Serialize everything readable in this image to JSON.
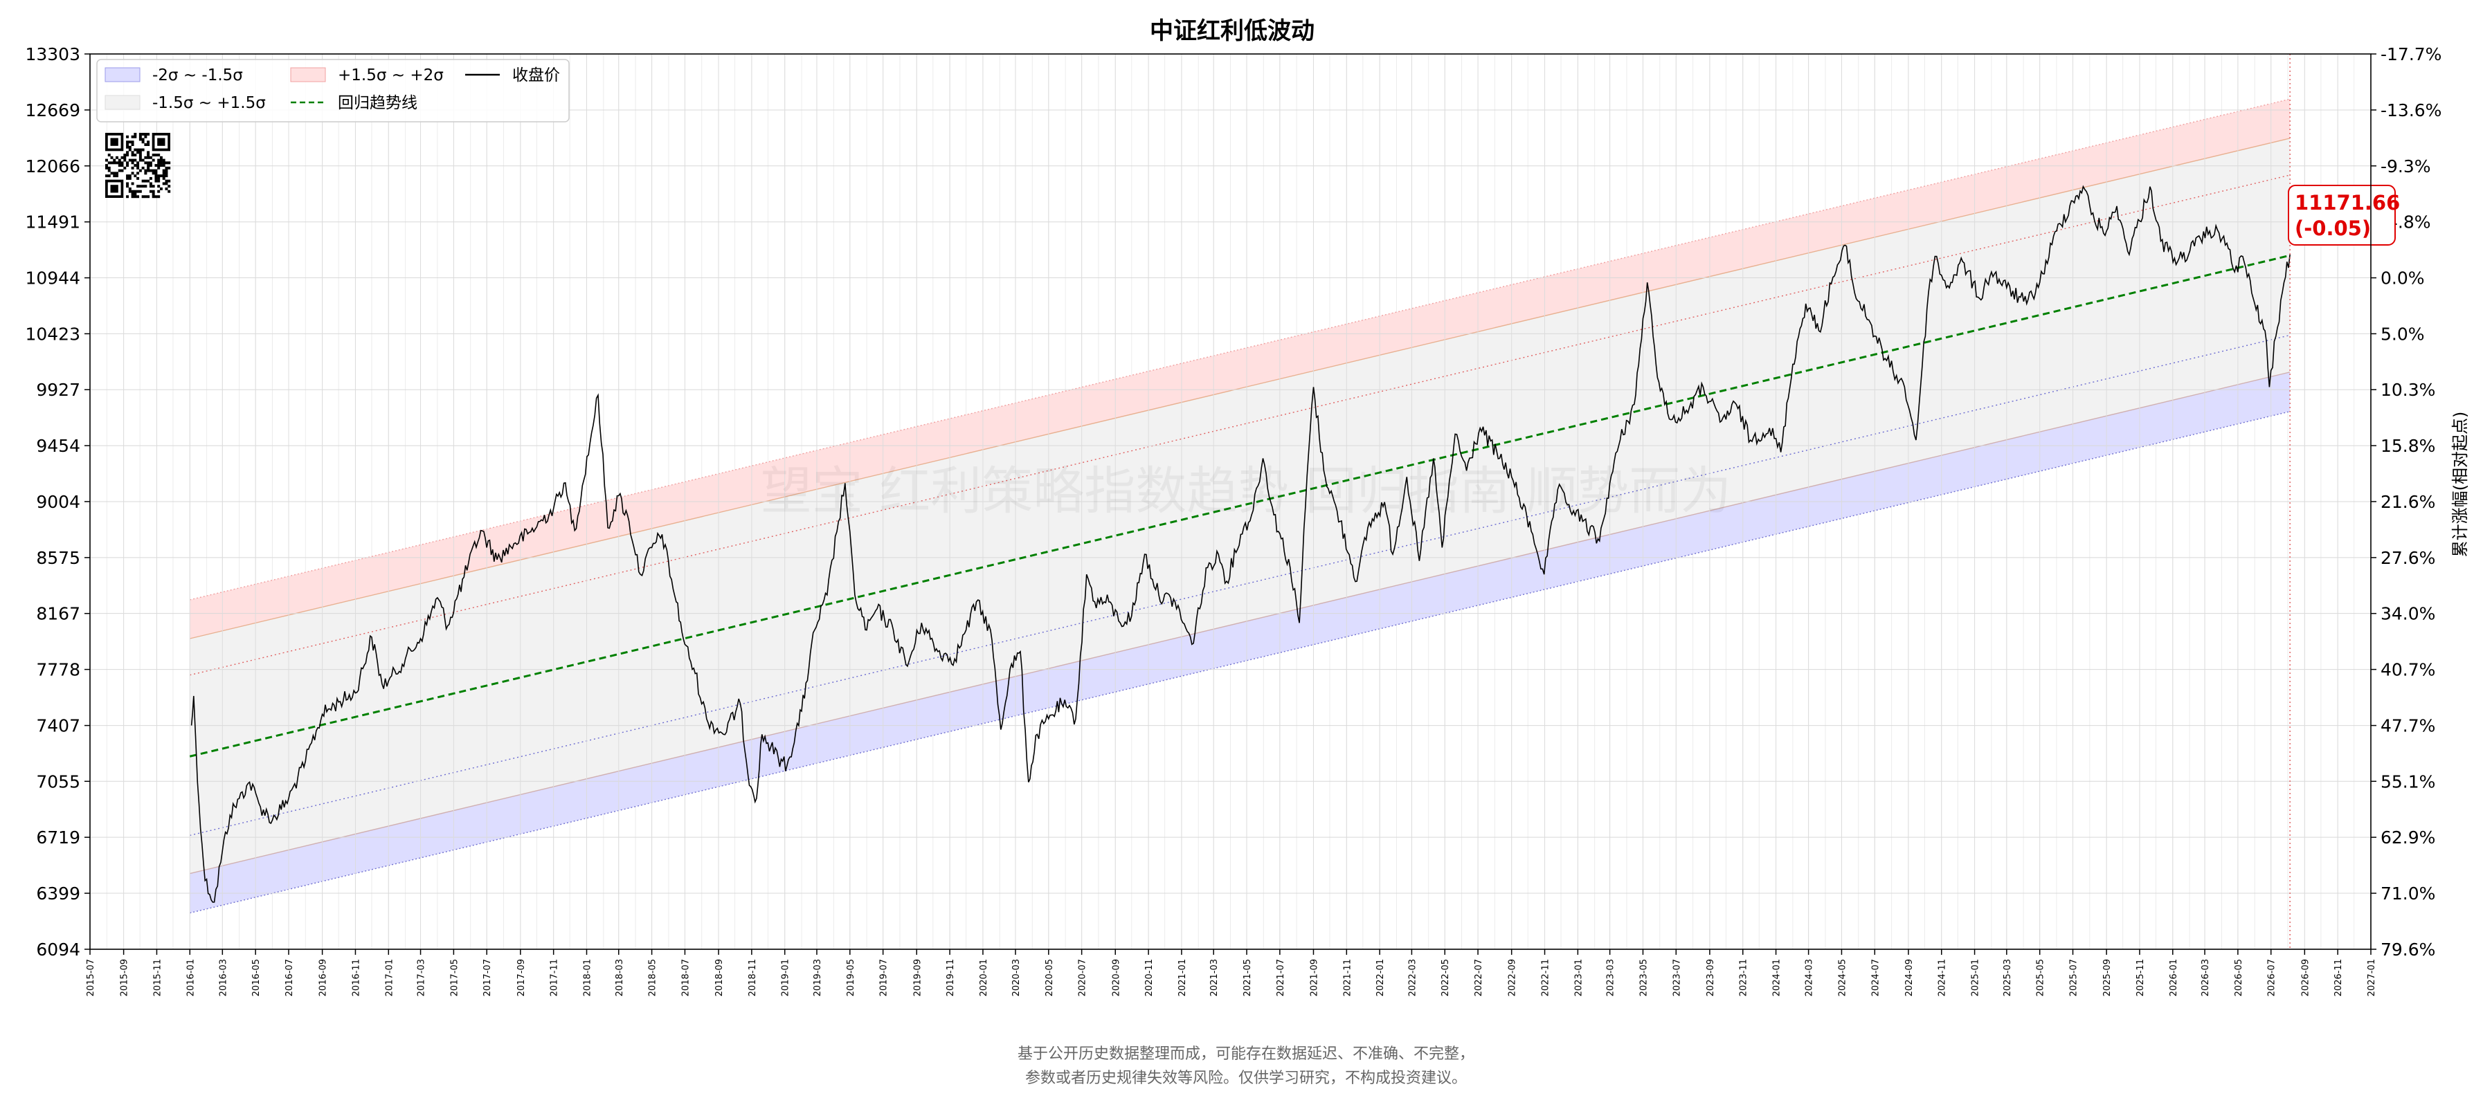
{
  "chart_data": {
    "type": "line",
    "title": "中证红利低波动",
    "xlabel": "",
    "ylabel": "",
    "y2label": "累计涨幅(相对起点)",
    "log_scale": true,
    "grid": true,
    "legend_position": "top-left",
    "x_range": [
      "2015-07",
      "2027-01"
    ],
    "y_range": [
      6094,
      13303
    ],
    "x_ticks": [
      "2015-07",
      "2015-09",
      "2015-11",
      "2016-01",
      "2016-03",
      "2016-05",
      "2016-07",
      "2016-09",
      "2016-11",
      "2017-01",
      "2017-03",
      "2017-05",
      "2017-07",
      "2017-09",
      "2017-11",
      "2018-01",
      "2018-03",
      "2018-05",
      "2018-07",
      "2018-09",
      "2018-11",
      "2019-01",
      "2019-03",
      "2019-05",
      "2019-07",
      "2019-09",
      "2019-11",
      "2020-01",
      "2020-03",
      "2020-05",
      "2020-07",
      "2020-09",
      "2020-11",
      "2021-01",
      "2021-03",
      "2021-05",
      "2021-07",
      "2021-09",
      "2021-11",
      "2022-01",
      "2022-03",
      "2022-05",
      "2022-07",
      "2022-09",
      "2022-11",
      "2023-01",
      "2023-03",
      "2023-05",
      "2023-07",
      "2023-09",
      "2023-11",
      "2024-01",
      "2024-03",
      "2024-05",
      "2024-07",
      "2024-09",
      "2024-11",
      "2025-01",
      "2025-03",
      "2025-05",
      "2025-07",
      "2025-09",
      "2025-11",
      "2026-01",
      "2026-03",
      "2026-05",
      "2026-07",
      "2026-09",
      "2026-11",
      "2027-01"
    ],
    "y_ticks": [
      6094,
      6399,
      6719,
      7055,
      7407,
      7778,
      8167,
      8575,
      9004,
      9454,
      9927,
      10423,
      10944,
      11491,
      12066,
      12669,
      13303
    ],
    "y2_ticks": [
      "79.6%",
      "71.0%",
      "62.9%",
      "55.1%",
      "47.7%",
      "40.7%",
      "34.0%",
      "27.6%",
      "21.6%",
      "15.8%",
      "10.3%",
      "5.0%",
      "0.0%",
      "-4.8%",
      "-9.3%",
      "-13.6%",
      "-17.7%"
    ],
    "legend": [
      {
        "label": "-2σ ~ -1.5σ",
        "color": "#d9d9ff"
      },
      {
        "label": "+1.5σ ~ +2σ",
        "color": "#ffd9d9"
      },
      {
        "label": "收盘价",
        "color": "#000000"
      },
      {
        "label": "-1.5σ ~ +1.5σ",
        "color": "#f0f0f0"
      },
      {
        "label": "回归趋势线",
        "color": "#008000"
      }
    ],
    "regression": {
      "start": {
        "x": "2016-01-01",
        "trend": 7210,
        "band_hi_2": 8265,
        "band_hi_15": 7990,
        "band_hi_1": 7740,
        "band_lo_1": 6730,
        "band_lo_15": 6510,
        "band_lo_2": 6290
      },
      "end": {
        "x": "2026-08-05",
        "trend": 11160,
        "band_hi_2": 12790,
        "band_hi_15": 12360,
        "band_hi_1": 11970,
        "band_lo_1": 10410,
        "band_lo_15": 10080,
        "band_lo_2": 9740
      }
    },
    "series": [
      {
        "name": "收盘价",
        "color": "#000000",
        "points": [
          [
            "2016-01-04",
            7407
          ],
          [
            "2016-01-08",
            7600
          ],
          [
            "2016-01-15",
            7050
          ],
          [
            "2016-01-29",
            6470
          ],
          [
            "2016-02-15",
            6350
          ],
          [
            "2016-03-01",
            6640
          ],
          [
            "2016-03-15",
            6850
          ],
          [
            "2016-04-01",
            6950
          ],
          [
            "2016-04-20",
            7050
          ],
          [
            "2016-05-10",
            6900
          ],
          [
            "2016-06-01",
            6820
          ],
          [
            "2016-07-01",
            6950
          ],
          [
            "2016-08-01",
            7180
          ],
          [
            "2016-09-01",
            7480
          ],
          [
            "2016-10-01",
            7560
          ],
          [
            "2016-11-01",
            7620
          ],
          [
            "2016-12-01",
            8000
          ],
          [
            "2016-12-20",
            7680
          ],
          [
            "2017-01-01",
            7700
          ],
          [
            "2017-02-01",
            7850
          ],
          [
            "2017-03-01",
            7990
          ],
          [
            "2017-04-01",
            8280
          ],
          [
            "2017-04-20",
            8080
          ],
          [
            "2017-05-20",
            8430
          ],
          [
            "2017-06-20",
            8780
          ],
          [
            "2017-07-20",
            8560
          ],
          [
            "2017-08-20",
            8680
          ],
          [
            "2017-09-20",
            8770
          ],
          [
            "2017-11-01",
            8950
          ],
          [
            "2017-11-20",
            9150
          ],
          [
            "2017-12-10",
            8780
          ],
          [
            "2018-01-10",
            9560
          ],
          [
            "2018-01-22",
            9880
          ],
          [
            "2018-02-09",
            8800
          ],
          [
            "2018-03-01",
            9050
          ],
          [
            "2018-03-20",
            8850
          ],
          [
            "2018-04-10",
            8450
          ],
          [
            "2018-05-01",
            8650
          ],
          [
            "2018-05-20",
            8750
          ],
          [
            "2018-06-15",
            8250
          ],
          [
            "2018-07-01",
            7950
          ],
          [
            "2018-07-20",
            7750
          ],
          [
            "2018-08-10",
            7450
          ],
          [
            "2018-09-10",
            7350
          ],
          [
            "2018-10-11",
            7550
          ],
          [
            "2018-10-25",
            7100
          ],
          [
            "2018-11-10",
            6950
          ],
          [
            "2018-11-20",
            7350
          ],
          [
            "2018-12-20",
            7200
          ],
          [
            "2019-01-05",
            7150
          ],
          [
            "2019-02-01",
            7500
          ],
          [
            "2019-02-25",
            8050
          ],
          [
            "2019-03-20",
            8300
          ],
          [
            "2019-04-10",
            8850
          ],
          [
            "2019-04-22",
            9150
          ],
          [
            "2019-05-10",
            8300
          ],
          [
            "2019-06-01",
            8050
          ],
          [
            "2019-06-20",
            8200
          ],
          [
            "2019-07-20",
            8050
          ],
          [
            "2019-08-15",
            7800
          ],
          [
            "2019-09-10",
            8100
          ],
          [
            "2019-10-10",
            7900
          ],
          [
            "2019-11-10",
            7850
          ],
          [
            "2019-12-01",
            8050
          ],
          [
            "2019-12-20",
            8250
          ],
          [
            "2020-01-15",
            8050
          ],
          [
            "2020-02-03",
            7380
          ],
          [
            "2020-02-20",
            7780
          ],
          [
            "2020-03-10",
            7900
          ],
          [
            "2020-03-25",
            7050
          ],
          [
            "2020-04-10",
            7350
          ],
          [
            "2020-05-01",
            7450
          ],
          [
            "2020-05-25",
            7550
          ],
          [
            "2020-06-20",
            7450
          ],
          [
            "2020-07-10",
            8450
          ],
          [
            "2020-07-25",
            8250
          ],
          [
            "2020-08-20",
            8250
          ],
          [
            "2020-09-10",
            8100
          ],
          [
            "2020-10-01",
            8150
          ],
          [
            "2020-10-25",
            8600
          ],
          [
            "2020-11-20",
            8300
          ],
          [
            "2020-12-20",
            8250
          ],
          [
            "2021-01-20",
            7950
          ],
          [
            "2021-02-18",
            8500
          ],
          [
            "2021-03-10",
            8600
          ],
          [
            "2021-03-25",
            8400
          ],
          [
            "2021-04-20",
            8750
          ],
          [
            "2021-05-10",
            8900
          ],
          [
            "2021-05-31",
            9350
          ],
          [
            "2021-06-20",
            8900
          ],
          [
            "2021-07-20",
            8500
          ],
          [
            "2021-08-06",
            8100
          ],
          [
            "2021-08-20",
            9200
          ],
          [
            "2021-09-01",
            9950
          ],
          [
            "2021-09-20",
            9250
          ],
          [
            "2021-10-20",
            8850
          ],
          [
            "2021-11-20",
            8400
          ],
          [
            "2021-12-10",
            8800
          ],
          [
            "2022-01-10",
            9000
          ],
          [
            "2022-01-25",
            8600
          ],
          [
            "2022-02-20",
            9200
          ],
          [
            "2022-03-15",
            8550
          ],
          [
            "2022-04-10",
            9350
          ],
          [
            "2022-04-26",
            8650
          ],
          [
            "2022-05-20",
            9550
          ],
          [
            "2022-06-10",
            9250
          ],
          [
            "2022-07-05",
            9600
          ],
          [
            "2022-08-10",
            9350
          ],
          [
            "2022-09-01",
            9200
          ],
          [
            "2022-10-10",
            8750
          ],
          [
            "2022-10-31",
            8450
          ],
          [
            "2022-11-25",
            9100
          ],
          [
            "2022-12-10",
            9000
          ],
          [
            "2023-01-10",
            8850
          ],
          [
            "2023-02-10",
            8700
          ],
          [
            "2023-03-01",
            9150
          ],
          [
            "2023-03-20",
            9500
          ],
          [
            "2023-04-15",
            9800
          ],
          [
            "2023-05-09",
            10900
          ],
          [
            "2023-05-25",
            10150
          ],
          [
            "2023-06-10",
            9800
          ],
          [
            "2023-06-30",
            9650
          ],
          [
            "2023-07-20",
            9750
          ],
          [
            "2023-08-20",
            9950
          ],
          [
            "2023-09-20",
            9650
          ],
          [
            "2023-10-20",
            9800
          ],
          [
            "2023-11-15",
            9500
          ],
          [
            "2023-12-20",
            9600
          ],
          [
            "2024-01-10",
            9400
          ],
          [
            "2024-02-01",
            10150
          ],
          [
            "2024-02-25",
            10700
          ],
          [
            "2024-03-20",
            10450
          ],
          [
            "2024-04-15",
            10950
          ],
          [
            "2024-05-10",
            11250
          ],
          [
            "2024-05-25",
            10800
          ],
          [
            "2024-06-20",
            10550
          ],
          [
            "2024-07-20",
            10200
          ],
          [
            "2024-08-10",
            10050
          ],
          [
            "2024-08-25",
            9950
          ],
          [
            "2024-09-15",
            9500
          ],
          [
            "2024-10-08",
            10800
          ],
          [
            "2024-10-20",
            11150
          ],
          [
            "2024-11-10",
            10850
          ],
          [
            "2024-12-10",
            11100
          ],
          [
            "2025-01-10",
            10750
          ],
          [
            "2025-02-01",
            11000
          ],
          [
            "2025-03-01",
            10850
          ],
          [
            "2025-04-07",
            10700
          ],
          [
            "2025-05-01",
            10900
          ],
          [
            "2025-06-01",
            11400
          ],
          [
            "2025-07-01",
            11700
          ],
          [
            "2025-07-20",
            11850
          ],
          [
            "2025-08-10",
            11500
          ],
          [
            "2025-09-01",
            11400
          ],
          [
            "2025-09-20",
            11650
          ],
          [
            "2025-10-10",
            11200
          ],
          [
            "2025-11-01",
            11500
          ],
          [
            "2025-11-20",
            11850
          ],
          [
            "2025-12-10",
            11300
          ],
          [
            "2026-01-10",
            11100
          ],
          [
            "2026-02-10",
            11250
          ],
          [
            "2026-03-10",
            11400
          ],
          [
            "2026-04-05",
            11350
          ],
          [
            "2026-04-25",
            11000
          ],
          [
            "2026-05-10",
            11150
          ],
          [
            "2026-06-01",
            10700
          ],
          [
            "2026-06-20",
            10450
          ],
          [
            "2026-06-28",
            9950
          ],
          [
            "2026-07-10",
            10400
          ],
          [
            "2026-07-25",
            10900
          ],
          [
            "2026-08-05",
            11171.66
          ]
        ]
      }
    ],
    "last_value_label": "11171.66",
    "last_change_label": "(-0.05)",
    "colors": {
      "price": "#000000",
      "trend": "#008000",
      "band_low": "#ddddff",
      "band_mid": "#f2f2f2",
      "band_high": "#ffe0e0",
      "annotation": "#e00000"
    }
  },
  "watermark": "望宝 红利策略指数趋势 回归指南 顺势而为",
  "footer": {
    "line1": "基于公开历史数据整理而成，可能存在数据延迟、不准确、不完整，",
    "line2": "参数或者历史规律失效等风险。仅供学习研究，不构成投资建议。"
  }
}
